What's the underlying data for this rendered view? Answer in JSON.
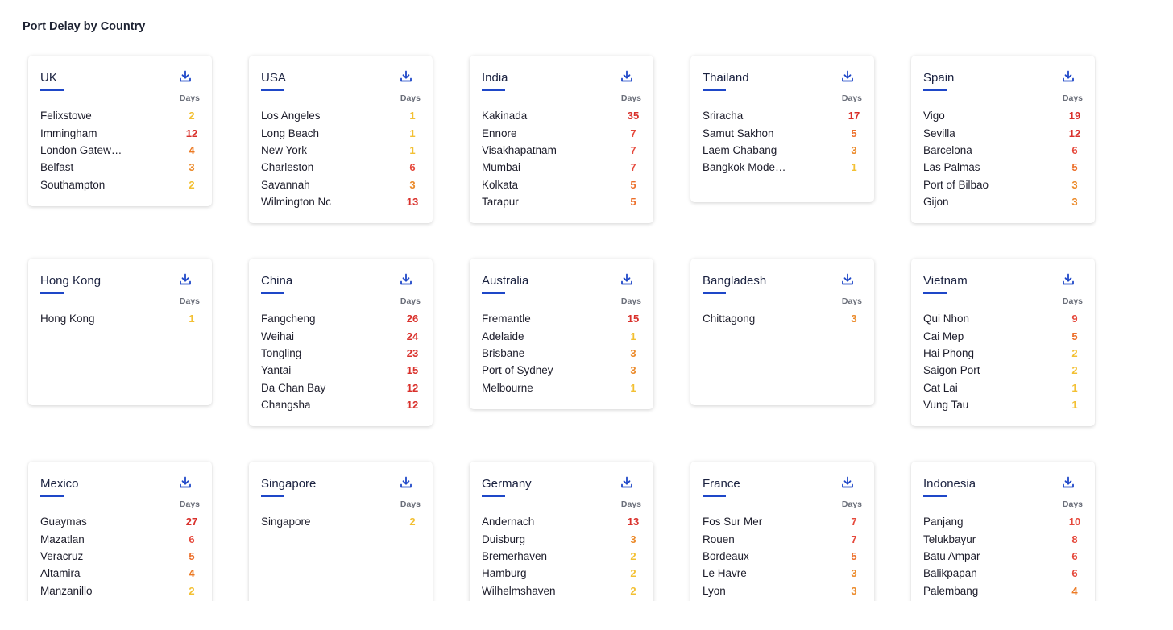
{
  "page_title": "Port Delay by Country",
  "days_label": "Days",
  "download_icon": "download-icon",
  "colors": {
    "low": "#f3c033",
    "mid": "#eb8a2a",
    "high": "#d9302b",
    "accent": "#1e47c8"
  },
  "cards": [
    {
      "country": "UK",
      "ports": [
        {
          "name": "Felixstowe",
          "days": 2
        },
        {
          "name": "Immingham",
          "days": 12
        },
        {
          "name": "London Gatew…",
          "days": 4
        },
        {
          "name": "Belfast",
          "days": 3
        },
        {
          "name": "Southampton",
          "days": 2
        }
      ]
    },
    {
      "country": "USA",
      "ports": [
        {
          "name": "Los Angeles",
          "days": 1
        },
        {
          "name": "Long Beach",
          "days": 1
        },
        {
          "name": "New York",
          "days": 1
        },
        {
          "name": "Charleston",
          "days": 6
        },
        {
          "name": "Savannah",
          "days": 3
        },
        {
          "name": "Wilmington Nc",
          "days": 13
        }
      ]
    },
    {
      "country": "India",
      "ports": [
        {
          "name": "Kakinada",
          "days": 35
        },
        {
          "name": "Ennore",
          "days": 7
        },
        {
          "name": "Visakhapatnam",
          "days": 7
        },
        {
          "name": "Mumbai",
          "days": 7
        },
        {
          "name": "Kolkata",
          "days": 5
        },
        {
          "name": "Tarapur",
          "days": 5
        }
      ]
    },
    {
      "country": "Thailand",
      "ports": [
        {
          "name": "Sriracha",
          "days": 17
        },
        {
          "name": "Samut Sakhon",
          "days": 5
        },
        {
          "name": "Laem Chabang",
          "days": 3
        },
        {
          "name": "Bangkok Mode…",
          "days": 1
        }
      ]
    },
    {
      "country": "Spain",
      "ports": [
        {
          "name": "Vigo",
          "days": 19
        },
        {
          "name": "Sevilla",
          "days": 12
        },
        {
          "name": "Barcelona",
          "days": 6
        },
        {
          "name": "Las Palmas",
          "days": 5
        },
        {
          "name": "Port of Bilbao",
          "days": 3
        },
        {
          "name": "Gijon",
          "days": 3
        }
      ]
    },
    {
      "country": "Hong Kong",
      "ports": [
        {
          "name": "Hong Kong",
          "days": 1
        }
      ]
    },
    {
      "country": "China",
      "ports": [
        {
          "name": "Fangcheng",
          "days": 26
        },
        {
          "name": "Weihai",
          "days": 24
        },
        {
          "name": "Tongling",
          "days": 23
        },
        {
          "name": "Yantai",
          "days": 15
        },
        {
          "name": "Da Chan Bay",
          "days": 12
        },
        {
          "name": "Changsha",
          "days": 12
        }
      ]
    },
    {
      "country": "Australia",
      "ports": [
        {
          "name": "Fremantle",
          "days": 15
        },
        {
          "name": "Adelaide",
          "days": 1
        },
        {
          "name": "Brisbane",
          "days": 3
        },
        {
          "name": "Port of Sydney",
          "days": 3
        },
        {
          "name": "Melbourne",
          "days": 1
        }
      ]
    },
    {
      "country": "Bangladesh",
      "ports": [
        {
          "name": "Chittagong",
          "days": 3
        }
      ]
    },
    {
      "country": "Vietnam",
      "ports": [
        {
          "name": "Qui Nhon",
          "days": 9
        },
        {
          "name": "Cai Mep",
          "days": 5
        },
        {
          "name": "Hai Phong",
          "days": 2
        },
        {
          "name": "Saigon Port",
          "days": 2
        },
        {
          "name": "Cat Lai",
          "days": 1
        },
        {
          "name": "Vung Tau",
          "days": 1
        }
      ]
    },
    {
      "country": "Mexico",
      "ports": [
        {
          "name": "Guaymas",
          "days": 27
        },
        {
          "name": "Mazatlan",
          "days": 6
        },
        {
          "name": "Veracruz",
          "days": 5
        },
        {
          "name": "Altamira",
          "days": 4
        },
        {
          "name": "Manzanillo",
          "days": 2
        }
      ]
    },
    {
      "country": "Singapore",
      "ports": [
        {
          "name": "Singapore",
          "days": 2
        }
      ]
    },
    {
      "country": "Germany",
      "ports": [
        {
          "name": "Andernach",
          "days": 13
        },
        {
          "name": "Duisburg",
          "days": 3
        },
        {
          "name": "Bremerhaven",
          "days": 2
        },
        {
          "name": "Hamburg",
          "days": 2
        },
        {
          "name": "Wilhelmshaven",
          "days": 2
        }
      ]
    },
    {
      "country": "France",
      "ports": [
        {
          "name": "Fos Sur Mer",
          "days": 7
        },
        {
          "name": "Rouen",
          "days": 7
        },
        {
          "name": "Bordeaux",
          "days": 5
        },
        {
          "name": "Le Havre",
          "days": 3
        },
        {
          "name": "Lyon",
          "days": 3
        }
      ]
    },
    {
      "country": "Indonesia",
      "ports": [
        {
          "name": "Panjang",
          "days": 10
        },
        {
          "name": "Telukbayur",
          "days": 8
        },
        {
          "name": "Batu Ampar",
          "days": 6
        },
        {
          "name": "Balikpapan",
          "days": 6
        },
        {
          "name": "Palembang",
          "days": 4
        }
      ]
    }
  ]
}
